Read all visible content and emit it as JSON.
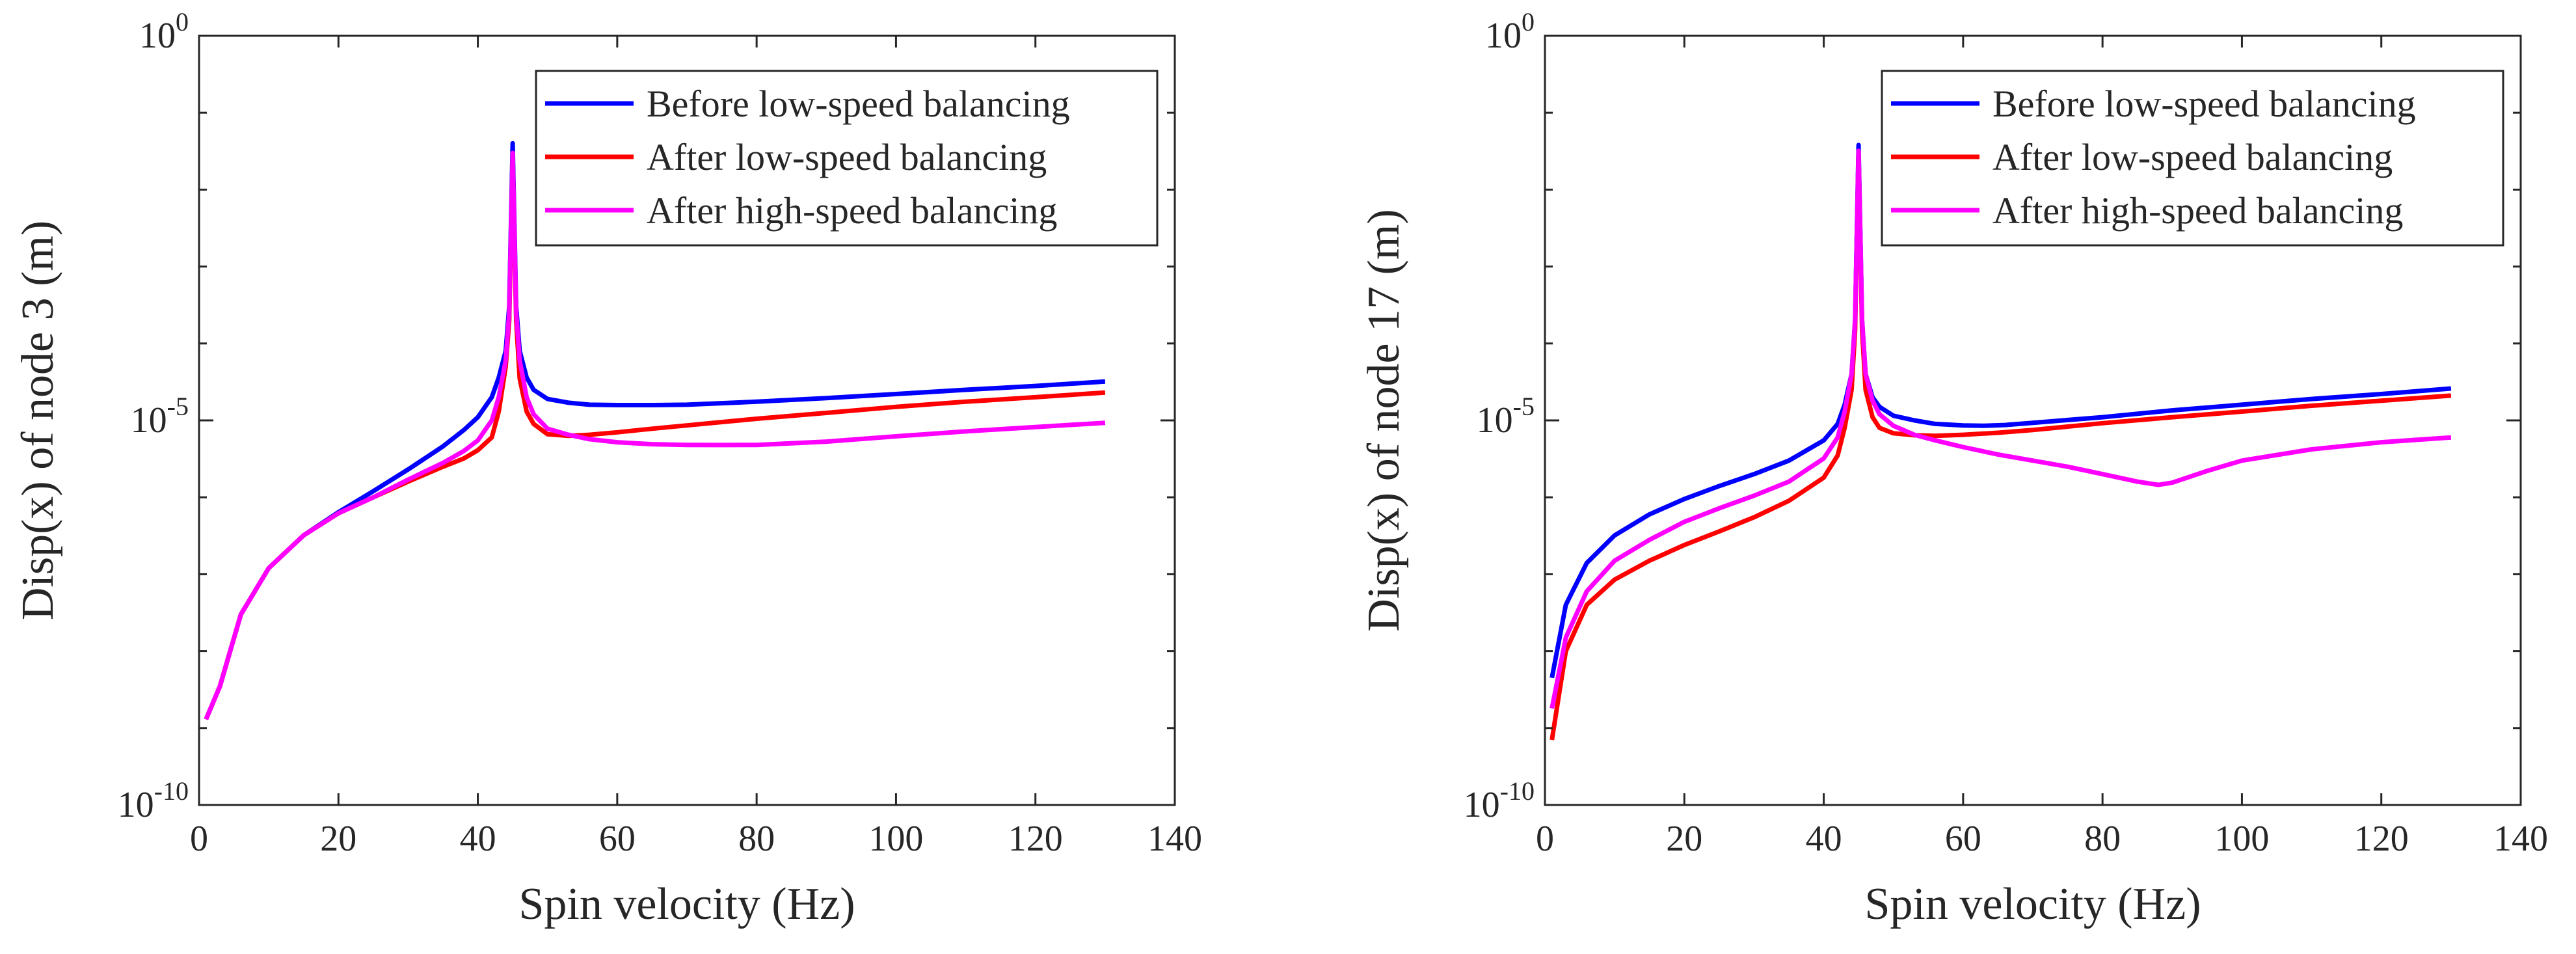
{
  "chart_data": [
    {
      "type": "line",
      "xlabel": "Spin velocity (Hz)",
      "ylabel": "Disp(x) of node 3 (m)",
      "yscale": "log",
      "xlim": [
        0,
        140
      ],
      "ylim": [
        1e-10,
        1
      ],
      "xticks": [
        0,
        20,
        40,
        60,
        80,
        100,
        120,
        140
      ],
      "xtick_labels": [
        "0",
        "20",
        "40",
        "60",
        "80",
        "100",
        "120",
        "140"
      ],
      "yticks": [
        1e-10,
        1e-05,
        1
      ],
      "ytick_labels": [
        {
          "base": "10",
          "exp": "-10"
        },
        {
          "base": "10",
          "exp": "-5"
        },
        {
          "base": "10",
          "exp": "0"
        }
      ],
      "legend": "top-right",
      "series": [
        {
          "name": "Before low-speed balancing",
          "color": "#0000ff",
          "x": [
            1,
            3,
            6,
            10,
            15,
            20,
            25,
            30,
            35,
            38,
            40,
            42,
            43,
            44,
            44.5,
            45,
            45.5,
            46,
            47,
            48,
            50,
            53,
            56,
            60,
            65,
            70,
            80,
            90,
            100,
            110,
            120,
            130
          ],
          "y": [
            1.3e-09,
            3.5e-09,
            3e-08,
            1.2e-07,
            3.2e-07,
            6.4e-07,
            1.2e-06,
            2.3e-06,
            4.6e-06,
            7.5e-06,
            1.1e-05,
            2e-05,
            3.6e-05,
            8e-05,
            0.0003,
            0.04,
            0.0003,
            8e-05,
            3.6e-05,
            2.5e-05,
            1.9e-05,
            1.7e-05,
            1.6e-05,
            1.58e-05,
            1.58e-05,
            1.6e-05,
            1.75e-05,
            1.95e-05,
            2.2e-05,
            2.5e-05,
            2.8e-05,
            3.2e-05
          ]
        },
        {
          "name": "After low-speed balancing",
          "color": "#ff0000",
          "x": [
            1,
            3,
            6,
            10,
            15,
            20,
            25,
            30,
            35,
            38,
            40,
            42,
            43,
            44,
            44.5,
            45,
            45.5,
            46,
            47,
            48,
            50,
            53,
            56,
            60,
            65,
            70,
            80,
            90,
            100,
            110,
            120,
            130
          ],
          "y": [
            1.3e-09,
            3.5e-09,
            3e-08,
            1.2e-07,
            3.2e-07,
            6.2e-07,
            1e-06,
            1.6e-06,
            2.5e-06,
            3.2e-06,
            4.1e-06,
            6e-06,
            1.3e-05,
            5e-05,
            0.0002,
            0.025,
            0.0002,
            3.5e-05,
            1.3e-05,
            9e-06,
            6.6e-06,
            6.3e-06,
            6.5e-06,
            7e-06,
            7.8e-06,
            8.6e-06,
            1.05e-05,
            1.25e-05,
            1.5e-05,
            1.75e-05,
            2e-05,
            2.3e-05
          ]
        },
        {
          "name": "After high-speed balancing",
          "color": "#ff00ff",
          "x": [
            1,
            3,
            6,
            10,
            15,
            20,
            25,
            30,
            35,
            38,
            40,
            42,
            43,
            44,
            44.5,
            45,
            45.5,
            46,
            47,
            48,
            50,
            53,
            56,
            60,
            65,
            70,
            75,
            80,
            90,
            100,
            110,
            120,
            130
          ],
          "y": [
            1.3e-09,
            3.5e-09,
            3e-08,
            1.2e-07,
            3.2e-07,
            6.2e-07,
            1e-06,
            1.7e-06,
            2.8e-06,
            4e-06,
            5.5e-06,
            1e-05,
            2e-05,
            6e-05,
            0.00025,
            0.03,
            0.00025,
            6e-05,
            2e-05,
            1.2e-05,
            7.8e-06,
            6.5e-06,
            5.7e-06,
            5.2e-06,
            4.9e-06,
            4.8e-06,
            4.78e-06,
            4.8e-06,
            5.3e-06,
            6.2e-06,
            7.2e-06,
            8.2e-06,
            9.3e-06
          ]
        }
      ]
    },
    {
      "type": "line",
      "xlabel": "Spin velocity (Hz)",
      "ylabel": "Disp(x) of node 17 (m)",
      "yscale": "log",
      "xlim": [
        0,
        140
      ],
      "ylim": [
        1e-10,
        1
      ],
      "xticks": [
        0,
        20,
        40,
        60,
        80,
        100,
        120,
        140
      ],
      "xtick_labels": [
        "0",
        "20",
        "40",
        "60",
        "80",
        "100",
        "120",
        "140"
      ],
      "yticks": [
        1e-10,
        1e-05,
        1
      ],
      "ytick_labels": [
        {
          "base": "10",
          "exp": "-10"
        },
        {
          "base": "10",
          "exp": "-5"
        },
        {
          "base": "10",
          "exp": "0"
        }
      ],
      "legend": "top-right",
      "series": [
        {
          "name": "Before low-speed balancing",
          "color": "#0000ff",
          "x": [
            1,
            3,
            6,
            10,
            15,
            20,
            25,
            30,
            35,
            40,
            42,
            43,
            44,
            44.5,
            45,
            45.5,
            46,
            47,
            48,
            50,
            53,
            56,
            60,
            63,
            66,
            70,
            80,
            90,
            100,
            110,
            120,
            130
          ],
          "y": [
            4.5e-09,
            4e-08,
            1.4e-07,
            3.2e-07,
            6e-07,
            9.5e-07,
            1.4e-06,
            2e-06,
            3e-06,
            5.5e-06,
            9e-06,
            1.6e-05,
            4e-05,
            0.0002,
            0.038,
            0.0002,
            4e-05,
            2e-05,
            1.5e-05,
            1.15e-05,
            1e-05,
            9e-06,
            8.6e-06,
            8.5e-06,
            8.7e-06,
            9.3e-06,
            1.1e-05,
            1.35e-05,
            1.6e-05,
            1.9e-05,
            2.2e-05,
            2.6e-05
          ]
        },
        {
          "name": "After low-speed balancing",
          "color": "#ff0000",
          "x": [
            1,
            3,
            6,
            10,
            15,
            20,
            25,
            30,
            35,
            40,
            42,
            43,
            44,
            44.5,
            45,
            45.5,
            46,
            47,
            48,
            50,
            53,
            56,
            60,
            65,
            70,
            80,
            90,
            100,
            110,
            120,
            130
          ],
          "y": [
            7e-10,
            1e-08,
            4e-08,
            8.5e-08,
            1.5e-07,
            2.4e-07,
            3.6e-07,
            5.5e-07,
            9e-07,
            1.8e-06,
            3.5e-06,
            8e-06,
            2.5e-05,
            0.00015,
            0.03,
            0.00015,
            2.5e-05,
            1.1e-05,
            8e-06,
            6.8e-06,
            6.4e-06,
            6.3e-06,
            6.5e-06,
            6.9e-06,
            7.5e-06,
            9.2e-06,
            1.1e-05,
            1.3e-05,
            1.55e-05,
            1.8e-05,
            2.1e-05
          ]
        },
        {
          "name": "After high-speed balancing",
          "color": "#ff00ff",
          "x": [
            1,
            3,
            6,
            10,
            15,
            20,
            25,
            30,
            35,
            40,
            42,
            43,
            44,
            44.5,
            45,
            45.5,
            46,
            47,
            48,
            50,
            53,
            56,
            60,
            65,
            70,
            75,
            80,
            85,
            88,
            90,
            95,
            100,
            110,
            120,
            130
          ],
          "y": [
            1.8e-09,
            1.5e-08,
            6e-08,
            1.5e-07,
            2.8e-07,
            4.8e-07,
            7.2e-07,
            1.05e-06,
            1.6e-06,
            3.2e-06,
            6e-06,
            1.3e-05,
            4e-05,
            0.0002,
            0.032,
            0.0002,
            4e-05,
            1.8e-05,
            1.2e-05,
            8.5e-06,
            6.5e-06,
            5.5e-06,
            4.5e-06,
            3.6e-06,
            3e-06,
            2.5e-06,
            2e-06,
            1.6e-06,
            1.45e-06,
            1.55e-06,
            2.2e-06,
            3e-06,
            4.2e-06,
            5.2e-06,
            6e-06
          ]
        }
      ]
    }
  ]
}
